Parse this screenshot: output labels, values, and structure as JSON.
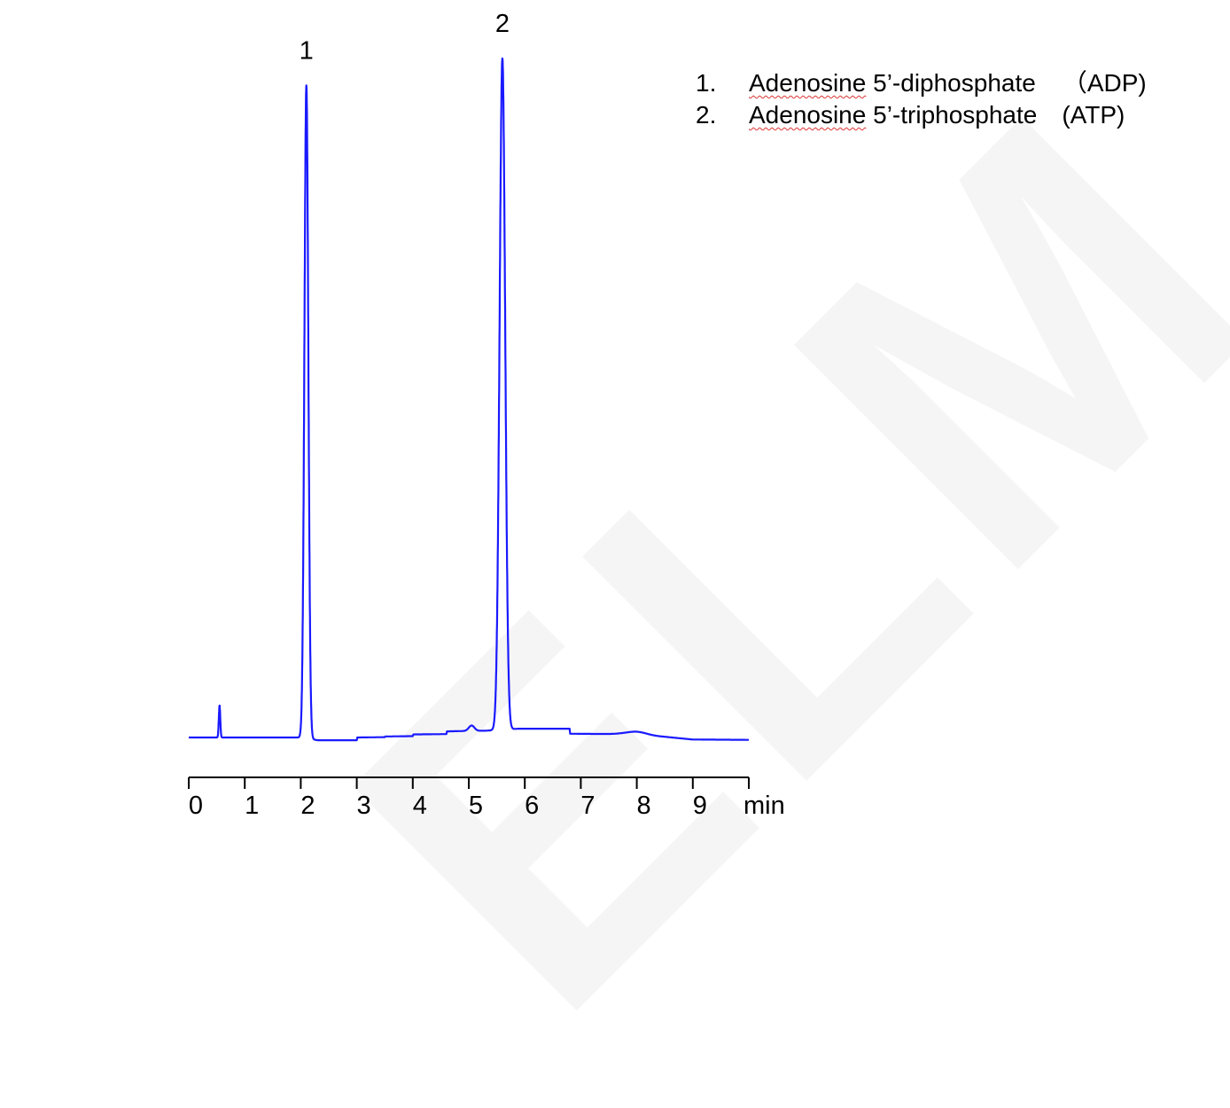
{
  "chart_data": {
    "type": "line",
    "title": "",
    "xlabel": "min",
    "ylabel": "",
    "xlim": [
      0,
      10
    ],
    "xticks": [
      "0",
      "1",
      "2",
      "3",
      "4",
      "5",
      "6",
      "7",
      "8",
      "9"
    ],
    "x_unit_label": "min",
    "y_axis_shown": false,
    "grid": false,
    "line_color": "#1a1aff",
    "baseline": [
      [
        0,
        0
      ],
      [
        2.0,
        0
      ],
      [
        2.3,
        -0.4
      ],
      [
        3.0,
        -0.4
      ],
      [
        3.01,
        0
      ],
      [
        3.5,
        0.05
      ],
      [
        3.51,
        0.15
      ],
      [
        4.0,
        0.2
      ],
      [
        4.01,
        0.45
      ],
      [
        4.6,
        0.5
      ],
      [
        4.61,
        0.9
      ],
      [
        4.9,
        0.95
      ],
      [
        5.3,
        1.0
      ],
      [
        5.9,
        1.3
      ],
      [
        6.8,
        1.3
      ],
      [
        6.81,
        0.55
      ],
      [
        7.7,
        0.5
      ],
      [
        8.5,
        0.1
      ],
      [
        9.0,
        -0.3
      ],
      [
        10,
        -0.35
      ]
    ],
    "peaks": [
      {
        "label": "",
        "rt": 0.55,
        "height": 4.7,
        "sigma": 0.013
      },
      {
        "label": "1",
        "rt": 2.1,
        "height": 96.3,
        "sigma": 0.035
      },
      {
        "label": "",
        "rt": 5.05,
        "height": 0.8,
        "sigma": 0.05
      },
      {
        "label": "2",
        "rt": 5.6,
        "height": 99.0,
        "sigma": 0.05
      },
      {
        "label": "",
        "rt": 8.0,
        "height": 0.5,
        "sigma": 0.18
      }
    ],
    "legend": [
      {
        "num": "1.",
        "name": "Adenosine",
        "rest": " 5’-diphosphate",
        "abbr": "（ADP)"
      },
      {
        "num": "2.",
        "name": "Adenosine",
        "rest": " 5’-triphosphate",
        "abbr": "(ATP)"
      }
    ],
    "legend_placement": "top-right"
  },
  "watermark": "ELM"
}
